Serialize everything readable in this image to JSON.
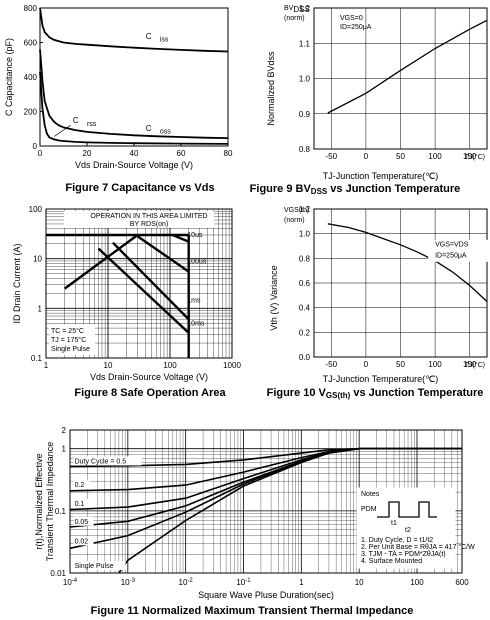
{
  "chart_data": [
    {
      "id": "fig7",
      "type": "line",
      "caption": "Figure 7 Capacitance vs Vds",
      "xlabel": "Vds Drain-Source Voltage (V)",
      "ylabel": "C Capacitance (pF)",
      "xlim": [
        0,
        80
      ],
      "ylim": [
        0,
        800
      ],
      "xticks": [
        "0",
        "20",
        "40",
        "60",
        "80"
      ],
      "yticks": [
        "0",
        "200",
        "400",
        "600",
        "800"
      ],
      "series": [
        {
          "name": "Ciss",
          "x": [
            0,
            1,
            2,
            4,
            6,
            10,
            15,
            20,
            30,
            40,
            50,
            60,
            70,
            80
          ],
          "y": [
            800,
            700,
            660,
            630,
            615,
            600,
            592,
            587,
            578,
            570,
            563,
            557,
            552,
            548
          ]
        },
        {
          "name": "Coss",
          "x": [
            0,
            1,
            2,
            4,
            6,
            8,
            10,
            15,
            20,
            30,
            40,
            50,
            60,
            70,
            80
          ],
          "y": [
            560,
            380,
            260,
            175,
            140,
            120,
            108,
            92,
            82,
            70,
            62,
            56,
            52,
            48,
            46
          ]
        },
        {
          "name": "Crss",
          "x": [
            0,
            1,
            2,
            3,
            4,
            6,
            8,
            10,
            15,
            20,
            30,
            40,
            60,
            80
          ],
          "y": [
            430,
            220,
            120,
            70,
            50,
            38,
            32,
            29,
            24,
            21,
            18,
            16,
            14,
            12
          ]
        }
      ]
    },
    {
      "id": "fig9",
      "type": "line",
      "caption_main": "Figure 9 BV",
      "caption_sub": "DSS",
      "caption_rest": " vs Junction Temperature",
      "xlabel": "TJ-Junction Temperature(℃)",
      "ylabel": "Normalized BVdss",
      "yunit_a": "BV",
      "yunit_a_sub": "DSS",
      "yunit_b": "(norm)",
      "cond1": "VGS=0",
      "cond2": "ID=250μA",
      "x_unit": "TJ(°C)",
      "xlim": [
        -75,
        175
      ],
      "ylim": [
        0.8,
        1.2
      ],
      "xticks": [
        "-50",
        "0",
        "50",
        "100",
        "150"
      ],
      "yticks": [
        "0.8",
        "0.9",
        "1.0",
        "1.1",
        "1.2"
      ],
      "series": [
        {
          "x": [
            -55,
            0,
            50,
            100,
            150,
            175
          ],
          "y": [
            0.902,
            0.958,
            1.023,
            1.085,
            1.14,
            1.165
          ]
        }
      ]
    },
    {
      "id": "fig8",
      "type": "line",
      "caption": "Figure 8 Safe Operation Area",
      "xlabel": "Vds Drain-Source Voltage (V)",
      "ylabel": "ID Drain Current (A)",
      "xscale": "log",
      "yscale": "log",
      "xlim": [
        1,
        1000
      ],
      "ylim": [
        0.1,
        100
      ],
      "xticks": [
        "1",
        "10",
        "100",
        "1000"
      ],
      "yticks": [
        "0.1",
        "1",
        "10",
        "100"
      ],
      "banner1": "OPERATION IN THIS AREA LIMITED",
      "banner2": "BY RDS(on)",
      "conditions": [
        "TC = 25°C",
        "TJ = 175°C",
        "Single Pulse"
      ],
      "limit_line": {
        "x": [
          1,
          200
        ],
        "y": [
          30,
          30
        ]
      },
      "vmax_line": {
        "x": [
          200,
          200
        ],
        "y": [
          0.1,
          30
        ]
      },
      "rds_line": {
        "x": [
          2,
          30
        ],
        "y": [
          2.5,
          30
        ]
      },
      "series": [
        {
          "name": "10us",
          "x": [
            110,
            200
          ],
          "y": [
            30,
            22
          ]
        },
        {
          "name": "100us",
          "x": [
            28,
            200
          ],
          "y": [
            30,
            5.5
          ]
        },
        {
          "name": "1ms",
          "x": [
            12,
            200
          ],
          "y": [
            21,
            0.6
          ]
        },
        {
          "name": "10ms",
          "x": [
            7,
            200
          ],
          "y": [
            16,
            0.32
          ]
        }
      ]
    },
    {
      "id": "fig10",
      "type": "line",
      "caption_main": "Figure 10 V",
      "caption_sub": "GS(th)",
      "caption_rest": " vs Junction Temperature",
      "xlabel": "TJ-Junction Temperature(℃)",
      "ylabel": "Vth (V) Variance",
      "yunit_a": "VGS(th)",
      "yunit_b": "(norm)",
      "cond1": "VGS=VDS",
      "cond2": "ID=250μA",
      "x_unit": "TJ(°C)",
      "xlim": [
        -75,
        175
      ],
      "ylim": [
        0.0,
        1.2
      ],
      "xticks": [
        "-50",
        "0",
        "50",
        "100",
        "150"
      ],
      "yticks": [
        "0.0",
        "0.2",
        "0.4",
        "0.6",
        "0.8",
        "1.0",
        "1.2"
      ],
      "series": [
        {
          "x": [
            -55,
            -25,
            0,
            25,
            50,
            75,
            100,
            125,
            150,
            175
          ],
          "y": [
            1.08,
            1.05,
            1.01,
            0.96,
            0.91,
            0.85,
            0.78,
            0.69,
            0.58,
            0.45
          ]
        }
      ]
    },
    {
      "id": "fig11",
      "type": "line",
      "caption": "Figure 11 Normalized Maximum Transient Thermal Impedance",
      "xlabel": "Square Wave Pluse Duration(sec)",
      "ylabel_1": "r(t),Normalized Effective",
      "ylabel_2": "Transient Thermal Impedance",
      "xscale": "log",
      "yscale": "log",
      "xlim": [
        0.0001,
        600
      ],
      "ylim": [
        0.01,
        2
      ],
      "xticks": [
        "10-4",
        "10-3",
        "10-2",
        "10-1",
        "1",
        "10",
        "100",
        "600"
      ],
      "yticks": [
        "0.01",
        "0.1",
        "1",
        "2"
      ],
      "series": [
        {
          "name": "Duty Cycle = 0.5",
          "x": [
            0.0001,
            0.001,
            0.01,
            0.1,
            1,
            3,
            10,
            600
          ],
          "y": [
            0.52,
            0.53,
            0.56,
            0.66,
            0.85,
            0.96,
            1.0,
            1.0
          ]
        },
        {
          "name": "0.2",
          "x": [
            0.0001,
            0.001,
            0.01,
            0.1,
            1,
            3,
            10,
            600
          ],
          "y": [
            0.21,
            0.22,
            0.26,
            0.42,
            0.72,
            0.9,
            1.0,
            1.0
          ]
        },
        {
          "name": "0.1",
          "x": [
            0.0001,
            0.001,
            0.01,
            0.1,
            1,
            3,
            10,
            600
          ],
          "y": [
            0.105,
            0.115,
            0.16,
            0.33,
            0.66,
            0.88,
            1.0,
            1.0
          ]
        },
        {
          "name": "0.05",
          "x": [
            0.0001,
            0.001,
            0.01,
            0.1,
            1,
            3,
            10,
            600
          ],
          "y": [
            0.055,
            0.068,
            0.12,
            0.29,
            0.63,
            0.87,
            1.0,
            1.0
          ]
        },
        {
          "name": "0.02",
          "x": [
            0.0001,
            0.001,
            0.01,
            0.1,
            1,
            3,
            10,
            600
          ],
          "y": [
            0.025,
            0.04,
            0.095,
            0.27,
            0.62,
            0.86,
            1.0,
            1.0
          ]
        },
        {
          "name": "Single Pulse",
          "x": [
            0.0007,
            0.001,
            0.01,
            0.1,
            1,
            3,
            10,
            600
          ],
          "y": [
            0.01,
            0.016,
            0.07,
            0.25,
            0.6,
            0.85,
            1.0,
            1.0
          ]
        }
      ],
      "notes": {
        "title": "Notes",
        "pdm": "PDM",
        "t1": "t1",
        "t2": "t2",
        "items": [
          "1. Duty Cycle, D = t1/t2",
          "2. Per Unit Base = RθJA = 417 °C/W",
          "3. TJM - TA = PDM*ZθJA(t)",
          "4. Surface Mounted"
        ]
      }
    }
  ]
}
